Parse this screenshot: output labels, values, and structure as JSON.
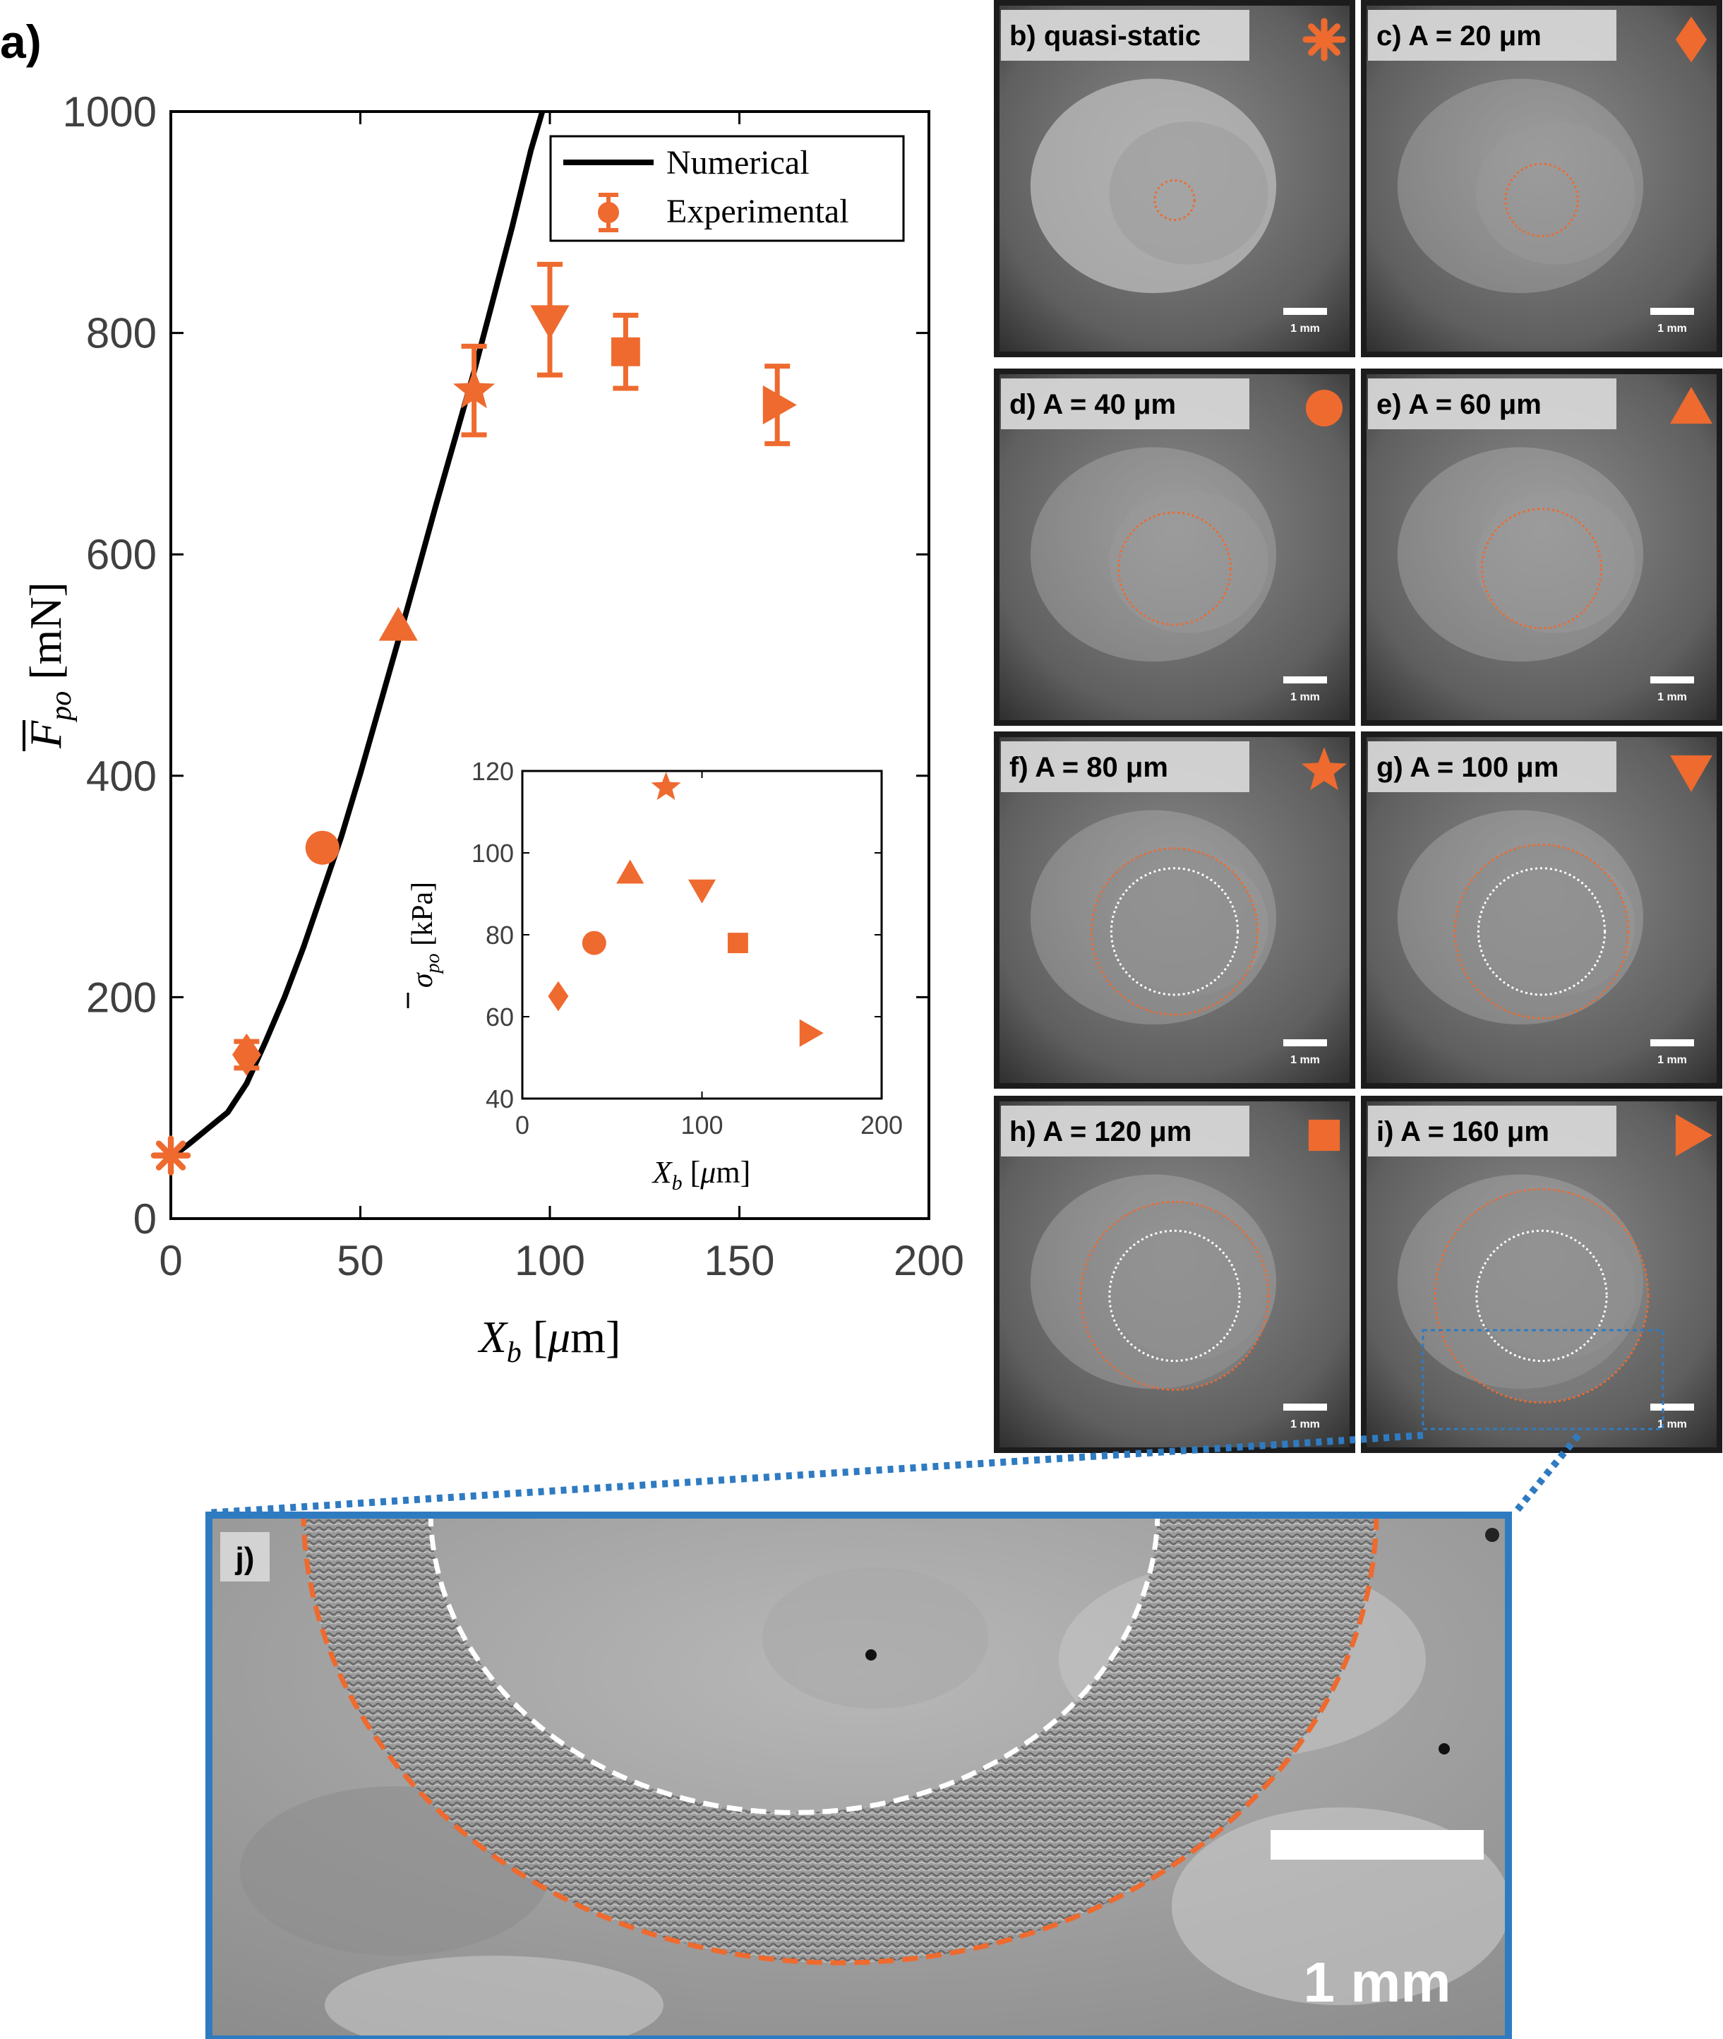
{
  "panel_letter": "a)",
  "chart_data": [
    {
      "type": "line+scatter",
      "xlabel": "X_b [μm]",
      "ylabel": "F̄_po [mN]",
      "xlim": [
        0,
        200
      ],
      "ylim": [
        0,
        1000
      ],
      "xticks": [
        "0",
        "50",
        "100",
        "150",
        "200"
      ],
      "yticks": [
        "0",
        "200",
        "400",
        "600",
        "800",
        "1000"
      ],
      "grid": false,
      "legend": {
        "position": "top-right",
        "entries": [
          "Numerical",
          "Experimental"
        ]
      },
      "series": [
        {
          "name": "Numerical",
          "type": "line",
          "color": "#000000",
          "x": [
            0,
            5,
            10,
            15,
            20,
            25,
            30,
            35,
            40,
            45,
            50,
            55,
            60,
            65,
            70,
            75,
            80,
            85,
            90,
            95,
            98
          ],
          "y": [
            55,
            68,
            82,
            96,
            122,
            160,
            200,
            245,
            295,
            345,
            402,
            462,
            522,
            583,
            645,
            705,
            765,
            830,
            895,
            965,
            1005
          ]
        },
        {
          "name": "Experimental",
          "type": "scatter",
          "color": "#EE6A2F",
          "points": [
            {
              "x": 0,
              "y": 57,
              "err": 0,
              "marker": "asterisk"
            },
            {
              "x": 20,
              "y": 148,
              "err": 12,
              "marker": "diamond"
            },
            {
              "x": 40,
              "y": 335,
              "err": 0,
              "marker": "circle"
            },
            {
              "x": 60,
              "y": 535,
              "err": 0,
              "marker": "triangle-up"
            },
            {
              "x": 80,
              "y": 748,
              "err": 40,
              "marker": "star"
            },
            {
              "x": 100,
              "y": 812,
              "err": 50,
              "marker": "triangle-down"
            },
            {
              "x": 120,
              "y": 783,
              "err": 33,
              "marker": "square"
            },
            {
              "x": 160,
              "y": 735,
              "err": 35,
              "marker": "triangle-right"
            }
          ]
        }
      ]
    },
    {
      "type": "scatter",
      "role": "inset",
      "xlabel": "X_b [μm]",
      "ylabel": "σ̄_po [kPa]",
      "xlim": [
        0,
        200
      ],
      "ylim": [
        40,
        120
      ],
      "xticks": [
        "0",
        "100",
        "200"
      ],
      "yticks": [
        "40",
        "60",
        "80",
        "100",
        "120"
      ],
      "points": [
        {
          "x": 20,
          "y": 65,
          "marker": "diamond"
        },
        {
          "x": 40,
          "y": 78,
          "marker": "circle"
        },
        {
          "x": 60,
          "y": 95,
          "marker": "triangle-up"
        },
        {
          "x": 80,
          "y": 116,
          "marker": "star"
        },
        {
          "x": 100,
          "y": 91,
          "marker": "triangle-down"
        },
        {
          "x": 120,
          "y": 78,
          "marker": "square"
        },
        {
          "x": 160,
          "y": 56,
          "marker": "triangle-right"
        }
      ]
    }
  ],
  "micrographs": [
    {
      "label": "b) quasi-static",
      "marker": "asterisk",
      "outer_ring": 0.11,
      "inner_ring": 0,
      "scale": "1 mm"
    },
    {
      "label": "c) A = 20 μm",
      "marker": "diamond",
      "outer_ring": 0.2,
      "inner_ring": 0,
      "scale": "1 mm"
    },
    {
      "label": "d) A = 40 μm",
      "marker": "circle",
      "outer_ring": 0.31,
      "inner_ring": 0,
      "scale": "1 mm"
    },
    {
      "label": "e) A = 60 μm",
      "marker": "triangle-up",
      "outer_ring": 0.33,
      "inner_ring": 0,
      "scale": "1 mm"
    },
    {
      "label": "f) A = 80 μm",
      "marker": "star",
      "outer_ring": 0.46,
      "inner_ring": 0.35,
      "scale": "1 mm"
    },
    {
      "label": "g) A = 100 μm",
      "marker": "triangle-down",
      "outer_ring": 0.48,
      "inner_ring": 0.35,
      "scale": "1 mm"
    },
    {
      "label": "h) A = 120 μm",
      "marker": "square",
      "outer_ring": 0.52,
      "inner_ring": 0.36,
      "scale": "1 mm"
    },
    {
      "label": "i) A = 160 μm",
      "marker": "triangle-right",
      "outer_ring": 0.59,
      "inner_ring": 0.36,
      "scale": "1 mm"
    }
  ],
  "zoom": {
    "label": "j)",
    "scale": "1 mm"
  },
  "colors": {
    "accent": "#EE6A2F",
    "zoom_frame": "#2F7BC1",
    "line": "#000000",
    "axis_text": "#404040"
  }
}
